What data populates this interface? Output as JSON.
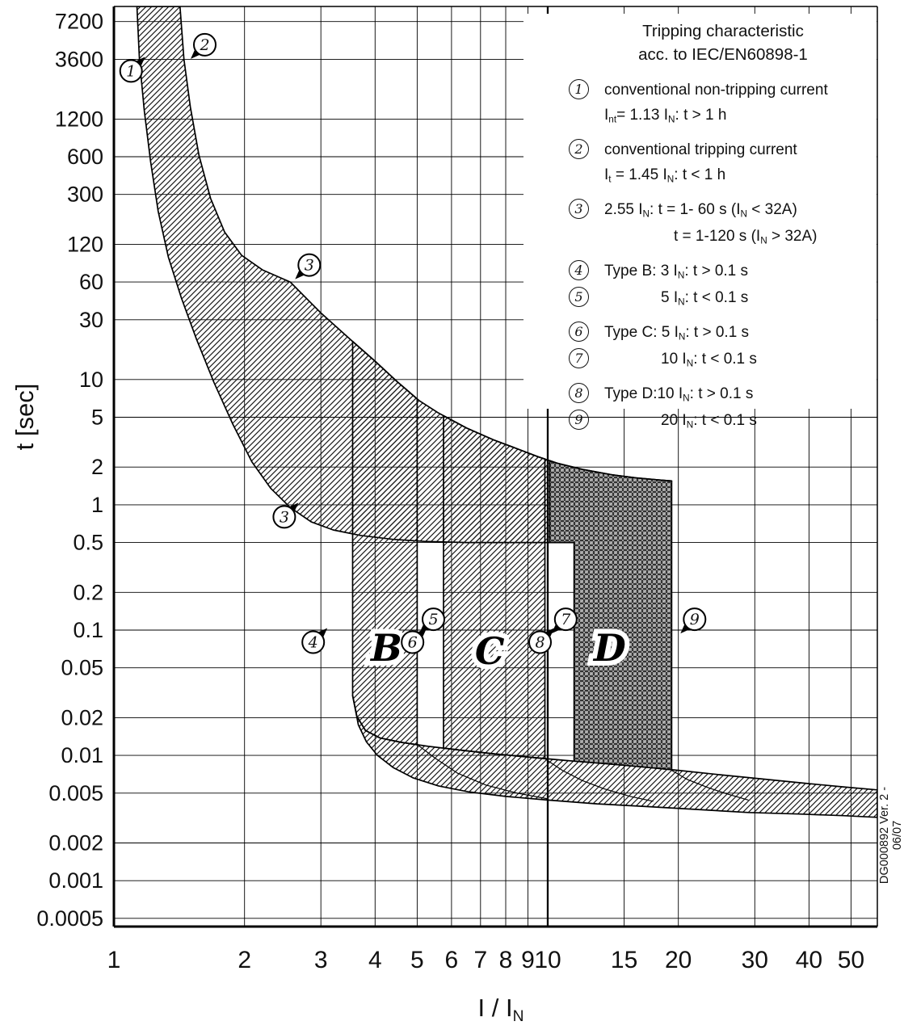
{
  "page": {
    "background": "#ffffff",
    "side_note": "DG000892 Ver. 2 - 06/07"
  },
  "chart_data": {
    "type": "line",
    "title": "Tripping characteristic acc. to IEC/EN60898-1",
    "xlabel": "I / I~N~",
    "ylabel": "t [sec]",
    "x_scale": "log",
    "y_scale": "log",
    "grid": "on",
    "x_range": [
      1,
      57.5
    ],
    "y_range": [
      0.00043,
      9500
    ],
    "x_ticks": [
      "1",
      "2",
      "3",
      "4",
      "5",
      "6",
      "7",
      "8",
      "9",
      "10",
      "15",
      "20",
      "30",
      "40",
      "50"
    ],
    "y_ticks": [
      "7200",
      "3600",
      "1200",
      "600",
      "300",
      "120",
      "60",
      "30",
      "10",
      "5",
      "2",
      "1",
      "0.5",
      "0.2",
      "0.1",
      "0.05",
      "0.02",
      "0.01",
      "0.005",
      "0.002",
      "0.001",
      "0.0005"
    ],
    "emphasized_x_gridline": "10",
    "series": [
      {
        "name": "thermal-upper-limit",
        "points": [
          [
            1.42,
            9500
          ],
          [
            1.45,
            3600
          ],
          [
            1.5,
            1500
          ],
          [
            1.57,
            620
          ],
          [
            1.67,
            280
          ],
          [
            1.8,
            150
          ],
          [
            1.97,
            98
          ],
          [
            2.2,
            75
          ],
          [
            2.55,
            60
          ],
          [
            3.0,
            34
          ],
          [
            3.5,
            21
          ],
          [
            4.0,
            14
          ],
          [
            4.5,
            9.6
          ],
          [
            5.05,
            6.8
          ],
          [
            5.6,
            5.4
          ],
          [
            6.5,
            4.1
          ],
          [
            7.5,
            3.3
          ],
          [
            8.5,
            2.8
          ],
          [
            9.5,
            2.42
          ],
          [
            10.5,
            2.15
          ],
          [
            12,
            1.92
          ],
          [
            14,
            1.74
          ],
          [
            16,
            1.64
          ],
          [
            18,
            1.58
          ],
          [
            19.3,
            1.55
          ]
        ]
      },
      {
        "name": "thermal-lower-limit",
        "points": [
          [
            1.13,
            9500
          ],
          [
            1.145,
            3600
          ],
          [
            1.175,
            1400
          ],
          [
            1.215,
            550
          ],
          [
            1.265,
            220
          ],
          [
            1.335,
            95
          ],
          [
            1.43,
            45
          ],
          [
            1.55,
            21
          ],
          [
            1.7,
            9.5
          ],
          [
            1.88,
            4.4
          ],
          [
            2.08,
            2.2
          ],
          [
            2.3,
            1.35
          ],
          [
            2.55,
            0.95
          ],
          [
            2.85,
            0.73
          ],
          [
            3.2,
            0.63
          ],
          [
            3.7,
            0.57
          ],
          [
            4.4,
            0.53
          ],
          [
            5.2,
            0.51
          ],
          [
            6.5,
            0.5
          ],
          [
            8,
            0.5
          ],
          [
            10.1,
            0.5
          ],
          [
            11.5,
            0.5
          ]
        ]
      },
      {
        "name": "instantaneous-band-top",
        "points": [
          [
            3.55,
            0.03
          ],
          [
            3.63,
            0.0205
          ],
          [
            3.8,
            0.0158
          ],
          [
            4.1,
            0.0138
          ],
          [
            4.6,
            0.0127
          ],
          [
            5.3,
            0.0118
          ],
          [
            6.3,
            0.011
          ],
          [
            7.5,
            0.0103
          ],
          [
            9,
            0.0097
          ],
          [
            11,
            0.0091
          ],
          [
            13.5,
            0.0086
          ],
          [
            16.5,
            0.0081
          ],
          [
            20,
            0.0076
          ],
          [
            25,
            0.007
          ],
          [
            31,
            0.0065
          ],
          [
            39,
            0.006
          ],
          [
            48,
            0.0056
          ],
          [
            57.5,
            0.0053
          ]
        ]
      },
      {
        "name": "instantaneous-band-bottom",
        "points": [
          [
            3.55,
            0.03
          ],
          [
            3.66,
            0.0175
          ],
          [
            3.82,
            0.0128
          ],
          [
            4.05,
            0.01
          ],
          [
            4.4,
            0.008
          ],
          [
            4.9,
            0.0066
          ],
          [
            5.6,
            0.0057
          ],
          [
            6.6,
            0.0051
          ],
          [
            8,
            0.0047
          ],
          [
            10,
            0.0044
          ],
          [
            13,
            0.0041
          ],
          [
            17,
            0.0039
          ],
          [
            22,
            0.0037
          ],
          [
            29,
            0.0035
          ],
          [
            38,
            0.0034
          ],
          [
            48,
            0.0033
          ],
          [
            57.5,
            0.0032
          ]
        ]
      }
    ],
    "tails": [
      [
        [
          5.0,
          0.0122
        ],
        [
          5.5,
          0.0095
        ],
        [
          6.2,
          0.0072
        ],
        [
          7.2,
          0.0058
        ],
        [
          8.5,
          0.005
        ],
        [
          10,
          0.0045
        ]
      ],
      [
        [
          9.85,
          0.0094
        ],
        [
          10.8,
          0.0076
        ],
        [
          12,
          0.0063
        ],
        [
          13.5,
          0.0054
        ],
        [
          15.5,
          0.0047
        ],
        [
          17.5,
          0.0043
        ]
      ],
      [
        [
          19.3,
          0.0076
        ],
        [
          21,
          0.0064
        ],
        [
          23.5,
          0.0055
        ],
        [
          26,
          0.0049
        ],
        [
          29,
          0.0044
        ]
      ]
    ],
    "bands": {
      "B": {
        "label": "B",
        "left": 3.55,
        "right": 5.0,
        "magnetic_range": "3-5 x IN"
      },
      "C": {
        "label": "C",
        "left": 5.75,
        "right": 9.85,
        "magnetic_range": "5-10 x IN"
      },
      "D": {
        "label": "D",
        "left": 10.1,
        "right": 19.3,
        "step_x": 11.5,
        "step_t": 0.5,
        "magnetic_range": "10-20 x IN"
      }
    },
    "band_labels": [
      {
        "text": "B",
        "x": 4.25,
        "t": 0.072
      },
      {
        "text": "C",
        "x": 7.35,
        "t": 0.068
      },
      {
        "text": "D",
        "x": 13.9,
        "t": 0.072
      }
    ],
    "markers": [
      {
        "num": "1",
        "x": 1.095,
        "t": 2900,
        "tri": "ne"
      },
      {
        "num": "2",
        "x": 1.62,
        "t": 4700,
        "tri": "sw"
      },
      {
        "num": "3",
        "x": 2.82,
        "t": 82,
        "tri": "sw"
      },
      {
        "num": "3",
        "x": 2.47,
        "t": 0.8,
        "tri": "ne"
      },
      {
        "num": "4",
        "x": 2.88,
        "t": 0.08,
        "tri": "ne"
      },
      {
        "num": "5",
        "x": 5.45,
        "t": 0.122,
        "tri": "sw"
      },
      {
        "num": "6",
        "x": 4.88,
        "t": 0.08,
        "tri": "ne"
      },
      {
        "num": "7",
        "x": 11.0,
        "t": 0.122,
        "tri": "sw"
      },
      {
        "num": "8",
        "x": 9.6,
        "t": 0.08,
        "tri": "ne"
      },
      {
        "num": "9",
        "x": 21.8,
        "t": 0.122,
        "tri": "sw"
      }
    ],
    "legend": {
      "title_lines": [
        "Tripping characteristic",
        "acc. to IEC/EN60898-1"
      ],
      "rows": [
        {
          "num": "1",
          "text": "conventional non-tripping current"
        },
        {
          "text": "I~nt~= 1.13 I~N~: t > 1 h",
          "indent": 1
        },
        {
          "num": "2",
          "text": "conventional tripping current",
          "gap": true
        },
        {
          "text": "I~t~ = 1.45 I~N~: t < 1 h",
          "indent": 1
        },
        {
          "num": "3",
          "text": "2.55 I~N~: t = 1- 60 s (I~N~ < 32A)",
          "gap": true
        },
        {
          "text": "t = 1-120 s (I~N~ > 32A)",
          "indent": 2
        },
        {
          "num": "4",
          "text": "Type B: 3 I~N~: t > 0.1 s",
          "gap": true
        },
        {
          "num": "5",
          "text": "5 I~N~: t < 0.1 s",
          "indent": 3
        },
        {
          "num": "6",
          "text": "Type C: 5 I~N~: t > 0.1 s",
          "gap": true
        },
        {
          "num": "7",
          "text": "10 I~N~: t < 0.1 s",
          "indent": 3
        },
        {
          "num": "8",
          "text": "Type D:10 I~N~: t > 0.1 s",
          "gap": true
        },
        {
          "num": "9",
          "text": "20 I~N~: t < 0.1 s",
          "indent": 3
        }
      ]
    }
  }
}
